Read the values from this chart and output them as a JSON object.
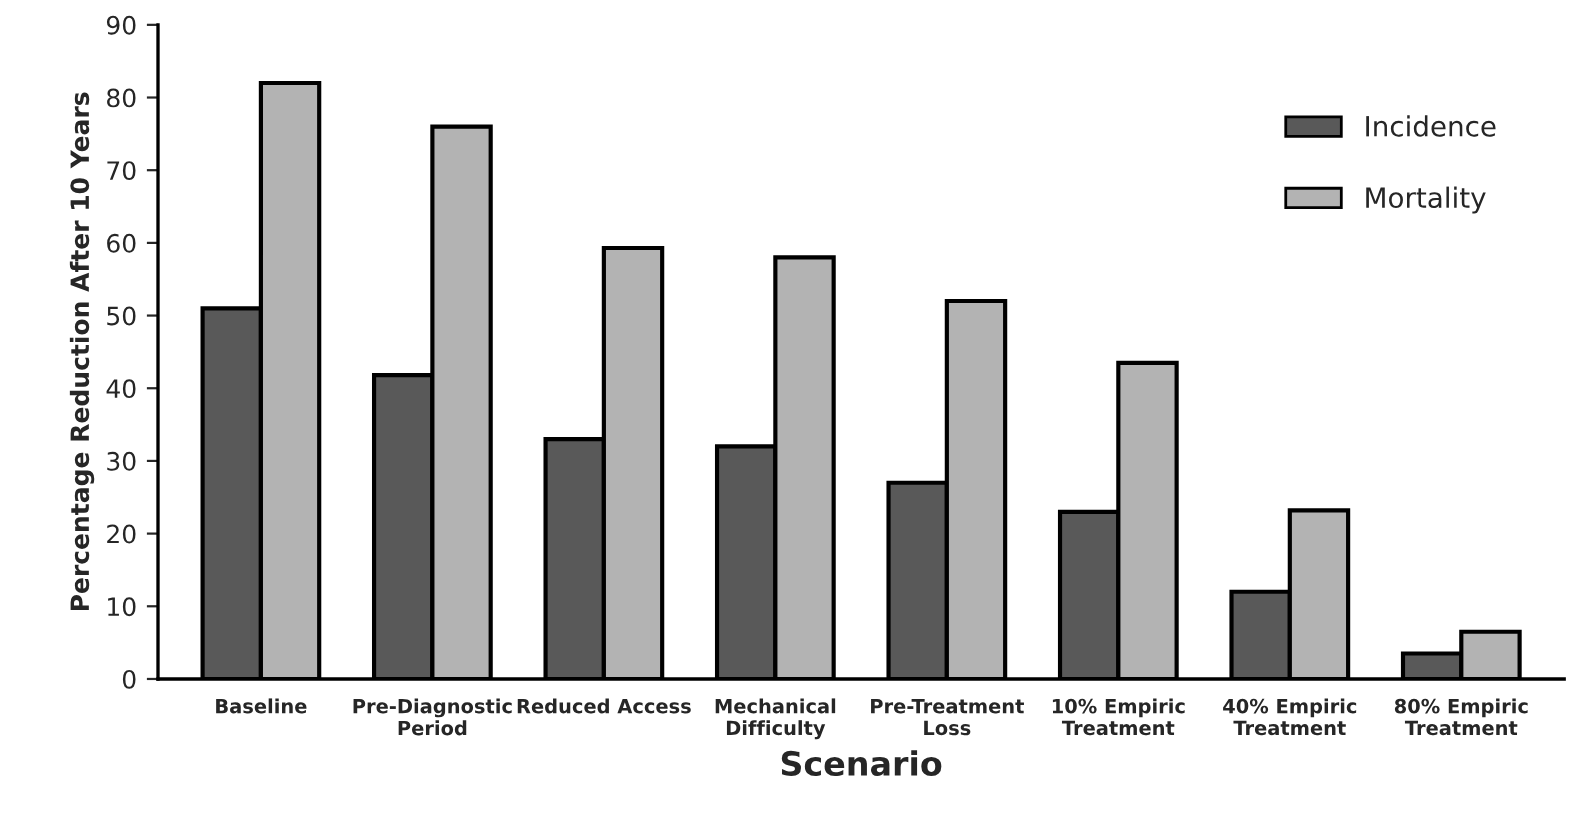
{
  "chart_data": {
    "type": "bar",
    "xlabel": "Scenario",
    "ylabel": "Percentage Reduction After 10 Years",
    "categories": [
      "Baseline",
      "Pre-Diagnostic\nPeriod",
      "Reduced Access",
      "Mechanical\nDifficulty",
      "Pre-Treatment\nLoss",
      "10% Empiric\nTreatment",
      "40% Empiric\nTreatment",
      "80% Empiric\nTreatment"
    ],
    "series": [
      {
        "name": "Incidence",
        "color": "#595959",
        "values": [
          51,
          41.8,
          33,
          32,
          27,
          23,
          12,
          3.5
        ]
      },
      {
        "name": "Mortality",
        "color": "#b3b3b3",
        "values": [
          82,
          76,
          59.3,
          58,
          52,
          43.5,
          23.2,
          6.5
        ]
      }
    ],
    "ylim": [
      0,
      90
    ],
    "yticks": [
      0,
      10,
      20,
      30,
      40,
      50,
      60,
      70,
      80,
      90
    ],
    "grid": false,
    "legend": "top right"
  }
}
